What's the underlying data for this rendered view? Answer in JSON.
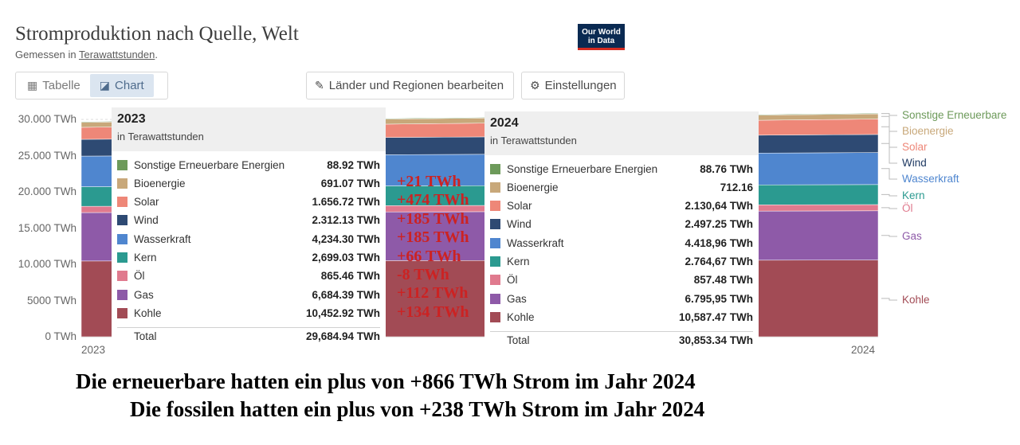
{
  "header": {
    "title": "Stromproduktion nach Quelle, Welt",
    "subtitle_prefix": "Gemessen in ",
    "subtitle_unit": "Terawattstunden",
    "subtitle_suffix": ".",
    "logo": "Our World in Data"
  },
  "toolbar": {
    "table_label": "Tabelle",
    "chart_label": "Chart",
    "edit_regions_label": "Länder und Regionen bearbeiten",
    "settings_label": "Einstellungen"
  },
  "colors": {
    "Sonstige Erneuerbare Energien": "#6d9a5a",
    "Bioenergie": "#c8a87a",
    "Solar": "#ee8778",
    "Wind": "#2e4a73",
    "Wasserkraft": "#4f86cf",
    "Kern": "#2b9a90",
    "Öl": "#e07a8e",
    "Gas": "#8e5aa8",
    "Kohle": "#a24b55"
  },
  "chart_data": {
    "type": "area",
    "x": [
      "2023",
      "2024"
    ],
    "ylabel": "",
    "ylim": [
      0,
      30000
    ],
    "yticks": [
      "0 TWh",
      "5000 TWh",
      "10.000 TWh",
      "15.000 TWh",
      "20.000 TWh",
      "25.000 TWh",
      "30.000 TWh"
    ],
    "series": [
      {
        "name": "Kohle",
        "values": [
          10452.92,
          10587.47
        ]
      },
      {
        "name": "Gas",
        "values": [
          6684.39,
          6795.95
        ]
      },
      {
        "name": "Öl",
        "values": [
          865.46,
          857.48
        ]
      },
      {
        "name": "Kern",
        "values": [
          2699.03,
          2764.67
        ]
      },
      {
        "name": "Wasserkraft",
        "values": [
          4234.3,
          4418.96
        ]
      },
      {
        "name": "Wind",
        "values": [
          2312.13,
          2497.25
        ]
      },
      {
        "name": "Solar",
        "values": [
          1656.72,
          2130.64
        ]
      },
      {
        "name": "Bioenergie",
        "values": [
          691.07,
          712.16
        ]
      },
      {
        "name": "Sonstige Erneuerbare Energien",
        "values": [
          88.92,
          88.76
        ]
      }
    ],
    "right_labels": [
      "Sonstige Erneuerbare",
      "Bioenergie",
      "Solar",
      "Wind",
      "Wasserkraft",
      "Kern",
      "Öl",
      "Gas",
      "Kohle"
    ]
  },
  "tooltip_2023": {
    "year": "2023",
    "unit": "in Terawattstunden",
    "rows": [
      {
        "name": "Sonstige Erneuerbare Energien",
        "value": "88.92 TWh"
      },
      {
        "name": "Bioenergie",
        "value": "691.07 TWh"
      },
      {
        "name": "Solar",
        "value": "1.656.72 TWh"
      },
      {
        "name": "Wind",
        "value": "2.312.13 TWh"
      },
      {
        "name": "Wasserkraft",
        "value": "4,234.30 TWh"
      },
      {
        "name": "Kern",
        "value": "2,699.03 TWh"
      },
      {
        "name": "Öl",
        "value": "865.46 TWh"
      },
      {
        "name": "Gas",
        "value": "6,684.39 TWh"
      },
      {
        "name": "Kohle",
        "value": "10,452.92 TWh"
      }
    ],
    "total_label": "Total",
    "total_value": "29,684.94 TWh"
  },
  "tooltip_2024": {
    "year": "2024",
    "unit": "in Terawattstunden",
    "rows": [
      {
        "name": "Sonstige Erneuerbare Energien",
        "value": "88.76 TWh"
      },
      {
        "name": "Bioenergie",
        "value": "712.16"
      },
      {
        "name": "Solar",
        "value": "2.130,64 TWh"
      },
      {
        "name": "Wind",
        "value": "2.497.25 TWh"
      },
      {
        "name": "Wasserkraft",
        "value": "4.418,96 TWh"
      },
      {
        "name": "Kern",
        "value": "2.764,67 TWh"
      },
      {
        "name": "Öl",
        "value": "857.48 TWh"
      },
      {
        "name": "Gas",
        "value": "6.795,95 TWh"
      },
      {
        "name": "Kohle",
        "value": "10,587.47 TWh"
      }
    ],
    "total_label": "Total",
    "total_value": "30,853.34 TWh"
  },
  "deltas": [
    "+21 TWh",
    "+474 TWh",
    "+185 TWh",
    "+185 TWh",
    "+66 TWh",
    "-8 TWh",
    "+112 TWh",
    "+134 TWh"
  ],
  "footer": {
    "line1": "Die erneuerbare hatten ein plus von +866 TWh Strom im Jahr 2024",
    "line2": "Die fossilen hatten ein plus von +238 TWh Strom im Jahr 2024"
  }
}
